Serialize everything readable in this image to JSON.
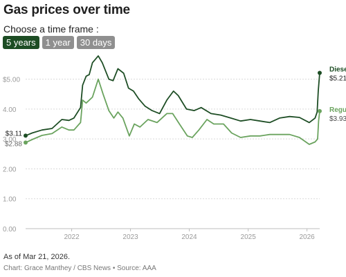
{
  "header": {
    "title": "Gas prices over time",
    "subtitle": "Choose a time frame :"
  },
  "timeframes": [
    {
      "label": "5 years",
      "active": true
    },
    {
      "label": "1 year",
      "active": false
    },
    {
      "label": "30 days",
      "active": false
    }
  ],
  "footer": {
    "as_of": "As of Mar 21, 2026.",
    "credit": "Chart: Grace Manthey / CBS News • Source: AAA"
  },
  "colors": {
    "diesel": "#1d4d24",
    "regular": "#6aa35e",
    "grid": "#d9d9d9",
    "active_button": "#1d4d24",
    "inactive_button": "#8f8f8f"
  },
  "chart_data": {
    "type": "line",
    "title": "Gas prices over time",
    "xlabel": "",
    "ylabel": "",
    "x_ticks": [
      "2022",
      "2023",
      "2024",
      "2025",
      "2026"
    ],
    "y_ticks": [
      "0.00",
      "1.00",
      "2.00",
      "3.00",
      "4.00",
      "$5.00"
    ],
    "ylim": [
      0,
      5.8
    ],
    "xlim": [
      "2021-03-21",
      "2026-03-21"
    ],
    "grid": true,
    "legend": "direct-labels-right",
    "series": [
      {
        "name": "Diesel",
        "start_label": "$3.11",
        "end_label": "$5.21",
        "points": [
          [
            "2021-03-21",
            3.11
          ],
          [
            "2021-05-01",
            3.2
          ],
          [
            "2021-07-01",
            3.3
          ],
          [
            "2021-09-01",
            3.35
          ],
          [
            "2021-11-01",
            3.65
          ],
          [
            "2021-12-15",
            3.62
          ],
          [
            "2022-01-15",
            3.7
          ],
          [
            "2022-02-25",
            4.05
          ],
          [
            "2022-03-10",
            4.8
          ],
          [
            "2022-04-01",
            5.1
          ],
          [
            "2022-04-20",
            5.15
          ],
          [
            "2022-05-10",
            5.55
          ],
          [
            "2022-06-15",
            5.78
          ],
          [
            "2022-07-10",
            5.55
          ],
          [
            "2022-08-20",
            5.0
          ],
          [
            "2022-09-15",
            4.95
          ],
          [
            "2022-10-15",
            5.35
          ],
          [
            "2022-11-20",
            5.2
          ],
          [
            "2022-12-20",
            4.7
          ],
          [
            "2023-01-20",
            4.6
          ],
          [
            "2023-02-20",
            4.35
          ],
          [
            "2023-04-01",
            4.1
          ],
          [
            "2023-05-15",
            3.95
          ],
          [
            "2023-07-01",
            3.85
          ],
          [
            "2023-08-15",
            4.3
          ],
          [
            "2023-09-25",
            4.6
          ],
          [
            "2023-10-25",
            4.45
          ],
          [
            "2023-12-15",
            4.0
          ],
          [
            "2024-02-01",
            3.95
          ],
          [
            "2024-03-15",
            4.05
          ],
          [
            "2024-05-15",
            3.85
          ],
          [
            "2024-07-15",
            3.8
          ],
          [
            "2024-09-15",
            3.7
          ],
          [
            "2024-11-15",
            3.6
          ],
          [
            "2025-01-15",
            3.65
          ],
          [
            "2025-03-15",
            3.6
          ],
          [
            "2025-05-15",
            3.55
          ],
          [
            "2025-07-15",
            3.7
          ],
          [
            "2025-09-15",
            3.75
          ],
          [
            "2025-11-15",
            3.72
          ],
          [
            "2026-01-15",
            3.55
          ],
          [
            "2026-02-20",
            3.7
          ],
          [
            "2026-03-05",
            3.9
          ],
          [
            "2026-03-12",
            4.6
          ],
          [
            "2026-03-21",
            5.21
          ]
        ]
      },
      {
        "name": "Regular",
        "start_label": "$2.88",
        "end_label": "$3.93",
        "points": [
          [
            "2021-03-21",
            2.88
          ],
          [
            "2021-05-01",
            2.98
          ],
          [
            "2021-07-01",
            3.12
          ],
          [
            "2021-09-01",
            3.18
          ],
          [
            "2021-11-01",
            3.4
          ],
          [
            "2021-12-15",
            3.3
          ],
          [
            "2022-01-15",
            3.3
          ],
          [
            "2022-02-25",
            3.55
          ],
          [
            "2022-03-10",
            4.3
          ],
          [
            "2022-04-01",
            4.2
          ],
          [
            "2022-05-10",
            4.4
          ],
          [
            "2022-06-15",
            5.0
          ],
          [
            "2022-07-15",
            4.5
          ],
          [
            "2022-08-20",
            3.95
          ],
          [
            "2022-09-20",
            3.7
          ],
          [
            "2022-10-15",
            3.9
          ],
          [
            "2022-11-15",
            3.7
          ],
          [
            "2022-12-25",
            3.1
          ],
          [
            "2023-01-25",
            3.5
          ],
          [
            "2023-03-01",
            3.4
          ],
          [
            "2023-04-20",
            3.65
          ],
          [
            "2023-06-15",
            3.55
          ],
          [
            "2023-08-15",
            3.85
          ],
          [
            "2023-09-20",
            3.85
          ],
          [
            "2023-11-01",
            3.5
          ],
          [
            "2023-12-20",
            3.1
          ],
          [
            "2024-01-20",
            3.05
          ],
          [
            "2024-03-01",
            3.3
          ],
          [
            "2024-04-20",
            3.65
          ],
          [
            "2024-06-01",
            3.5
          ],
          [
            "2024-08-01",
            3.5
          ],
          [
            "2024-09-20",
            3.2
          ],
          [
            "2024-11-15",
            3.05
          ],
          [
            "2025-01-15",
            3.1
          ],
          [
            "2025-03-15",
            3.1
          ],
          [
            "2025-05-15",
            3.15
          ],
          [
            "2025-07-15",
            3.15
          ],
          [
            "2025-09-15",
            3.15
          ],
          [
            "2025-11-15",
            3.05
          ],
          [
            "2026-01-15",
            2.82
          ],
          [
            "2026-02-20",
            2.9
          ],
          [
            "2026-03-08",
            3.0
          ],
          [
            "2026-03-14",
            3.6
          ],
          [
            "2026-03-21",
            3.93
          ]
        ]
      }
    ]
  }
}
